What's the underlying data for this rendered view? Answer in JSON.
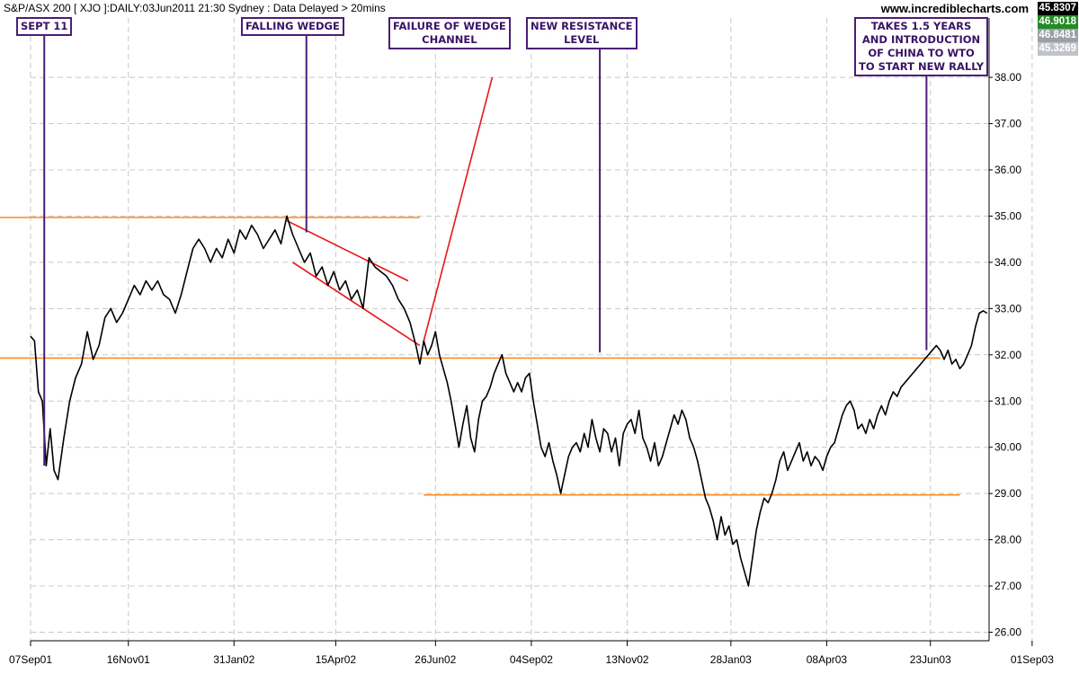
{
  "chart_data": {
    "type": "line",
    "title": "S&P/ASX 200 [ XJO ]:DAILY:03Jun2011 21:30 Sydney : Data Delayed > 20mins",
    "watermark": "www.incrediblecharts.com",
    "xlabel": "",
    "ylabel": "",
    "ylim": [
      25.6,
      39.0
    ],
    "y_ticks": [
      "26.00",
      "27.00",
      "28.00",
      "29.00",
      "30.00",
      "31.00",
      "32.00",
      "33.00",
      "34.00",
      "35.00",
      "36.00",
      "37.00",
      "38.00"
    ],
    "x_ticks": [
      "07Sep01",
      "16Nov01",
      "31Jan02",
      "15Apr02",
      "26Jun02",
      "04Sep02",
      "13Nov02",
      "28Jan03",
      "08Apr03",
      "23Jun03",
      "01Sep03"
    ],
    "x_tick_positions": [
      0,
      50,
      104,
      156,
      207,
      256,
      305,
      358,
      407,
      460,
      512
    ],
    "grid": true,
    "price_boxes": [
      {
        "label": "45.8307",
        "bg": "#000000",
        "fg": "#ffffff"
      },
      {
        "label": "46.9018",
        "bg": "#228b22",
        "fg": "#ffffff"
      },
      {
        "label": "46.8481",
        "bg": "#9aa0a6",
        "fg": "#ffffff"
      },
      {
        "label": "45.3269",
        "bg": "#c0c4c8",
        "fg": "#ffffff"
      }
    ],
    "series": [
      {
        "name": "",
        "color": "#000000",
        "points": [
          [
            0,
            32.4
          ],
          [
            2,
            32.3
          ],
          [
            4,
            31.2
          ],
          [
            6,
            31.0
          ],
          [
            8,
            29.6
          ],
          [
            10,
            30.4
          ],
          [
            12,
            29.5
          ],
          [
            14,
            29.3
          ],
          [
            17,
            30.2
          ],
          [
            20,
            31.0
          ],
          [
            23,
            31.5
          ],
          [
            26,
            31.8
          ],
          [
            29,
            32.5
          ],
          [
            32,
            31.9
          ],
          [
            35,
            32.2
          ],
          [
            38,
            32.8
          ],
          [
            41,
            33.0
          ],
          [
            44,
            32.7
          ],
          [
            47,
            32.9
          ],
          [
            50,
            33.2
          ],
          [
            53,
            33.5
          ],
          [
            56,
            33.3
          ],
          [
            59,
            33.6
          ],
          [
            62,
            33.4
          ],
          [
            65,
            33.6
          ],
          [
            68,
            33.3
          ],
          [
            71,
            33.2
          ],
          [
            74,
            32.9
          ],
          [
            77,
            33.3
          ],
          [
            80,
            33.8
          ],
          [
            83,
            34.3
          ],
          [
            86,
            34.5
          ],
          [
            89,
            34.3
          ],
          [
            92,
            34.0
          ],
          [
            95,
            34.3
          ],
          [
            98,
            34.1
          ],
          [
            101,
            34.5
          ],
          [
            104,
            34.2
          ],
          [
            107,
            34.7
          ],
          [
            110,
            34.5
          ],
          [
            113,
            34.8
          ],
          [
            116,
            34.6
          ],
          [
            119,
            34.3
          ],
          [
            122,
            34.5
          ],
          [
            125,
            34.7
          ],
          [
            128,
            34.4
          ],
          [
            131,
            35.0
          ],
          [
            134,
            34.6
          ],
          [
            137,
            34.3
          ],
          [
            140,
            34.0
          ],
          [
            143,
            34.2
          ],
          [
            146,
            33.7
          ],
          [
            149,
            33.9
          ],
          [
            152,
            33.5
          ],
          [
            155,
            33.8
          ],
          [
            158,
            33.4
          ],
          [
            161,
            33.6
          ],
          [
            164,
            33.2
          ],
          [
            167,
            33.4
          ],
          [
            170,
            33.0
          ],
          [
            173,
            34.1
          ],
          [
            176,
            33.9
          ],
          [
            179,
            33.8
          ],
          [
            182,
            33.7
          ],
          [
            185,
            33.5
          ],
          [
            188,
            33.2
          ],
          [
            191,
            33.0
          ],
          [
            194,
            32.7
          ],
          [
            197,
            32.2
          ],
          [
            199,
            31.8
          ],
          [
            201,
            32.3
          ],
          [
            203,
            32.0
          ],
          [
            205,
            32.2
          ],
          [
            207,
            32.5
          ],
          [
            209,
            32.0
          ],
          [
            211,
            31.7
          ],
          [
            213,
            31.4
          ],
          [
            215,
            31.0
          ],
          [
            217,
            30.5
          ],
          [
            219,
            30.0
          ],
          [
            221,
            30.5
          ],
          [
            223,
            30.9
          ],
          [
            225,
            30.2
          ],
          [
            227,
            29.9
          ],
          [
            229,
            30.6
          ],
          [
            231,
            31.0
          ],
          [
            233,
            31.1
          ],
          [
            235,
            31.3
          ],
          [
            237,
            31.6
          ],
          [
            239,
            31.8
          ],
          [
            241,
            32.0
          ],
          [
            243,
            31.6
          ],
          [
            245,
            31.4
          ],
          [
            247,
            31.2
          ],
          [
            249,
            31.4
          ],
          [
            251,
            31.2
          ],
          [
            253,
            31.5
          ],
          [
            255,
            31.6
          ],
          [
            257,
            31.0
          ],
          [
            259,
            30.5
          ],
          [
            261,
            30.0
          ],
          [
            263,
            29.8
          ],
          [
            265,
            30.1
          ],
          [
            267,
            29.7
          ],
          [
            269,
            29.4
          ],
          [
            271,
            29.0
          ],
          [
            273,
            29.4
          ],
          [
            275,
            29.8
          ],
          [
            277,
            30.0
          ],
          [
            279,
            30.1
          ],
          [
            281,
            29.9
          ],
          [
            283,
            30.3
          ],
          [
            285,
            30.0
          ],
          [
            287,
            30.6
          ],
          [
            289,
            30.2
          ],
          [
            291,
            29.9
          ],
          [
            293,
            30.4
          ],
          [
            295,
            30.3
          ],
          [
            297,
            29.9
          ],
          [
            299,
            30.2
          ],
          [
            301,
            29.6
          ],
          [
            303,
            30.3
          ],
          [
            305,
            30.5
          ],
          [
            307,
            30.6
          ],
          [
            309,
            30.3
          ],
          [
            311,
            30.8
          ],
          [
            313,
            30.2
          ],
          [
            315,
            30.0
          ],
          [
            317,
            29.7
          ],
          [
            319,
            30.1
          ],
          [
            321,
            29.6
          ],
          [
            323,
            29.8
          ],
          [
            325,
            30.1
          ],
          [
            327,
            30.4
          ],
          [
            329,
            30.7
          ],
          [
            331,
            30.5
          ],
          [
            333,
            30.8
          ],
          [
            335,
            30.6
          ],
          [
            337,
            30.2
          ],
          [
            339,
            30.0
          ],
          [
            341,
            29.7
          ],
          [
            343,
            29.3
          ],
          [
            345,
            28.9
          ],
          [
            347,
            28.7
          ],
          [
            349,
            28.4
          ],
          [
            351,
            28.0
          ],
          [
            353,
            28.5
          ],
          [
            355,
            28.1
          ],
          [
            357,
            28.3
          ],
          [
            359,
            27.9
          ],
          [
            361,
            28.0
          ],
          [
            363,
            27.6
          ],
          [
            365,
            27.3
          ],
          [
            367,
            27.0
          ],
          [
            369,
            27.6
          ],
          [
            371,
            28.2
          ],
          [
            373,
            28.6
          ],
          [
            375,
            28.9
          ],
          [
            377,
            28.8
          ],
          [
            379,
            29.0
          ],
          [
            381,
            29.3
          ],
          [
            383,
            29.7
          ],
          [
            385,
            29.9
          ],
          [
            387,
            29.5
          ],
          [
            389,
            29.7
          ],
          [
            391,
            29.9
          ],
          [
            393,
            30.1
          ],
          [
            395,
            29.7
          ],
          [
            397,
            29.9
          ],
          [
            399,
            29.6
          ],
          [
            401,
            29.8
          ],
          [
            403,
            29.7
          ],
          [
            405,
            29.5
          ],
          [
            407,
            29.8
          ],
          [
            409,
            30.0
          ],
          [
            411,
            30.1
          ],
          [
            413,
            30.4
          ],
          [
            415,
            30.7
          ],
          [
            417,
            30.9
          ],
          [
            419,
            31.0
          ],
          [
            421,
            30.8
          ],
          [
            423,
            30.4
          ],
          [
            425,
            30.5
          ],
          [
            427,
            30.3
          ],
          [
            429,
            30.6
          ],
          [
            431,
            30.4
          ],
          [
            433,
            30.7
          ],
          [
            435,
            30.9
          ],
          [
            437,
            30.7
          ],
          [
            439,
            31.0
          ],
          [
            441,
            31.2
          ],
          [
            443,
            31.1
          ],
          [
            445,
            31.3
          ],
          [
            447,
            31.4
          ],
          [
            449,
            31.5
          ],
          [
            451,
            31.6
          ],
          [
            453,
            31.7
          ],
          [
            455,
            31.8
          ],
          [
            457,
            31.9
          ],
          [
            459,
            32.0
          ],
          [
            461,
            32.1
          ],
          [
            463,
            32.2
          ],
          [
            465,
            32.1
          ],
          [
            467,
            31.9
          ],
          [
            469,
            32.1
          ],
          [
            471,
            31.8
          ],
          [
            473,
            31.9
          ],
          [
            475,
            31.7
          ],
          [
            477,
            31.8
          ],
          [
            479,
            32.0
          ],
          [
            481,
            32.2
          ],
          [
            483,
            32.6
          ],
          [
            485,
            32.9
          ],
          [
            487,
            32.95
          ],
          [
            489,
            32.9
          ]
        ]
      }
    ],
    "trend_lines": [
      {
        "color": "#ff8c1a",
        "from": [
          -20,
          34.97
        ],
        "to": [
          199,
          34.97
        ]
      },
      {
        "color": "#ff8c1a",
        "from": [
          -20,
          31.93
        ],
        "to": [
          465,
          31.93
        ]
      },
      {
        "color": "#ff8c1a",
        "from": [
          201,
          28.97
        ],
        "to": [
          475,
          28.97
        ]
      },
      {
        "color": "#e8161a",
        "from": [
          131,
          34.9
        ],
        "to": [
          193,
          33.6
        ]
      },
      {
        "color": "#e8161a",
        "from": [
          134,
          34.0
        ],
        "to": [
          199,
          32.2
        ]
      },
      {
        "color": "#e8161a",
        "from": [
          201,
          32.3
        ],
        "to": [
          236,
          38.0
        ]
      }
    ],
    "annotations": [
      {
        "text": "SEPT 11",
        "line_to": [
          7,
          29.6
        ]
      },
      {
        "text": "FALLING WEDGE",
        "line_to": [
          141,
          34.65
        ]
      },
      {
        "text": "FAILURE OF WEDGE\nCHANNEL",
        "line_to": null
      },
      {
        "text": "NEW RESISTANCE\nLEVEL",
        "line_to": [
          291,
          32.05
        ]
      },
      {
        "text": "TAKES 1.5 YEARS\nAND INTRODUCTION\nOF CHINA TO WTO\nTO START NEW RALLY",
        "line_to": [
          458,
          32.1
        ]
      }
    ]
  }
}
